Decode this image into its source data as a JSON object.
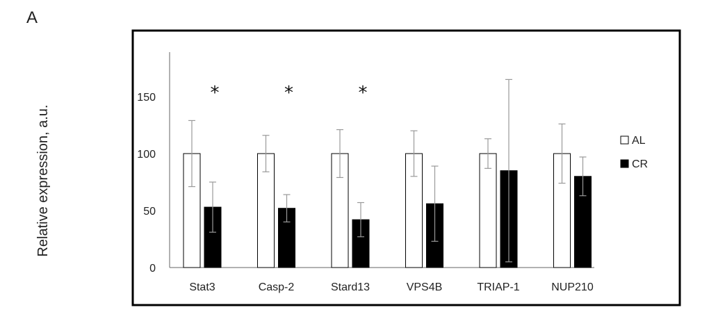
{
  "panel_label": "A",
  "chart_data": {
    "type": "bar",
    "title": "",
    "xlabel": "",
    "ylabel": "Relative expression, a.u.",
    "ylim": [
      0,
      190
    ],
    "yticks": [
      0,
      50,
      100,
      150
    ],
    "categories": [
      "Stat3",
      "Casp-2",
      "Stard13",
      "VPS4B",
      "TRIAP-1",
      "NUP210"
    ],
    "series": [
      {
        "name": "AL",
        "fill": "#ffffff",
        "values": [
          100,
          100,
          100,
          100,
          100,
          100
        ],
        "error": [
          29,
          16,
          21,
          20,
          13,
          26
        ]
      },
      {
        "name": "CR",
        "fill": "#000000",
        "values": [
          53,
          52,
          42,
          56,
          85,
          80
        ],
        "error": [
          22,
          12,
          15,
          33,
          80,
          17
        ]
      }
    ],
    "significance": [
      "*",
      "*",
      "*",
      "",
      "",
      ""
    ],
    "legend": {
      "position": "right",
      "entries": [
        "AL",
        "CR"
      ]
    },
    "colors": {
      "axis": "#666666",
      "error_bar": "#999999",
      "frame": "#000000"
    }
  }
}
